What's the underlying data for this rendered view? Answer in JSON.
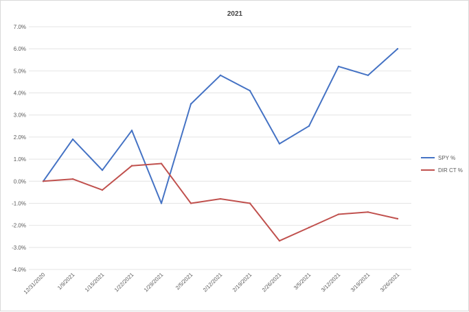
{
  "chart_data": {
    "type": "line",
    "title": "2021",
    "xlabel": "",
    "ylabel": "",
    "categories": [
      "12/31/2020",
      "1/9/2021",
      "1/15/2021",
      "1/22/2021",
      "1/29/2021",
      "2/5/2021",
      "2/12/2021",
      "2/19/2021",
      "2/26/2021",
      "3/5/2021",
      "3/12/2021",
      "3/19/2021",
      "3/26/2021"
    ],
    "ylim": [
      -4.0,
      7.0
    ],
    "yticks": [
      "-4.0%",
      "-3.0%",
      "-2.0%",
      "-1.0%",
      "0.0%",
      "1.0%",
      "2.0%",
      "3.0%",
      "4.0%",
      "5.0%",
      "6.0%",
      "7.0%"
    ],
    "grid": true,
    "legend_position": "right",
    "series": [
      {
        "name": "SPY %",
        "color": "#4472c4",
        "values": [
          0.0,
          1.9,
          0.5,
          2.3,
          -1.0,
          3.5,
          4.8,
          4.1,
          1.7,
          2.5,
          5.2,
          4.8,
          6.0
        ]
      },
      {
        "name": "DIR CT %",
        "color": "#c0504d",
        "values": [
          0.0,
          0.1,
          -0.4,
          0.7,
          0.8,
          -1.0,
          -0.8,
          -1.0,
          -2.7,
          -2.1,
          -1.5,
          -1.4,
          -1.7
        ]
      }
    ]
  }
}
